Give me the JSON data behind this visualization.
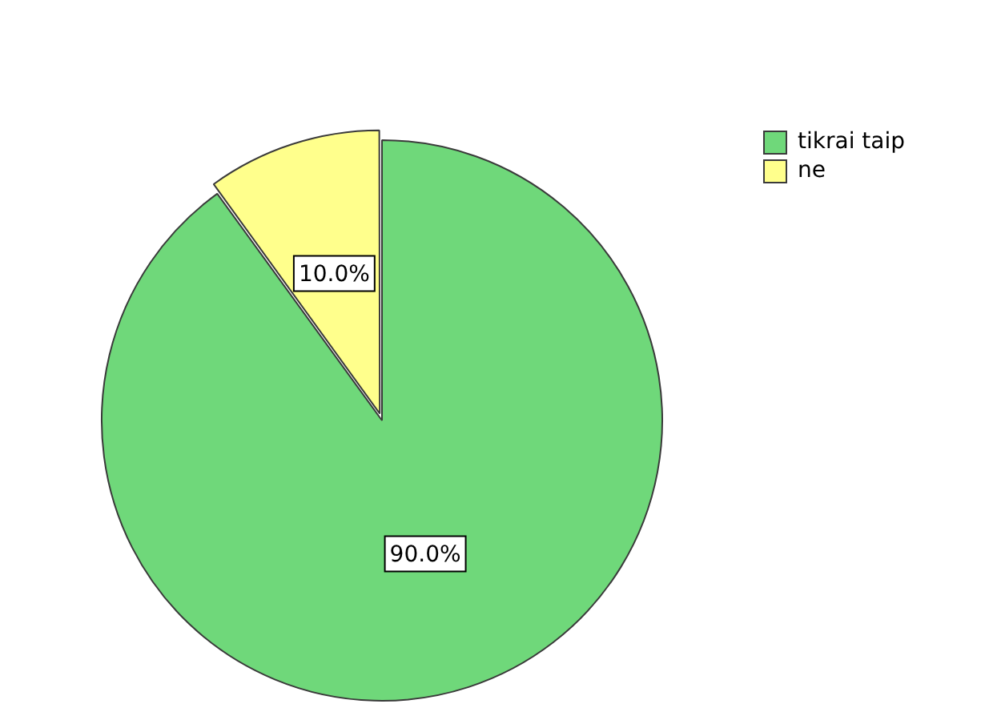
{
  "chart_data": {
    "type": "pie",
    "categories": [
      "tikrai taip",
      "ne"
    ],
    "values": [
      90,
      10
    ],
    "colors": [
      "#6fd87a",
      "#ffff8c"
    ],
    "value_labels": [
      "90.0%",
      "10.0%"
    ],
    "legend": "top right"
  }
}
